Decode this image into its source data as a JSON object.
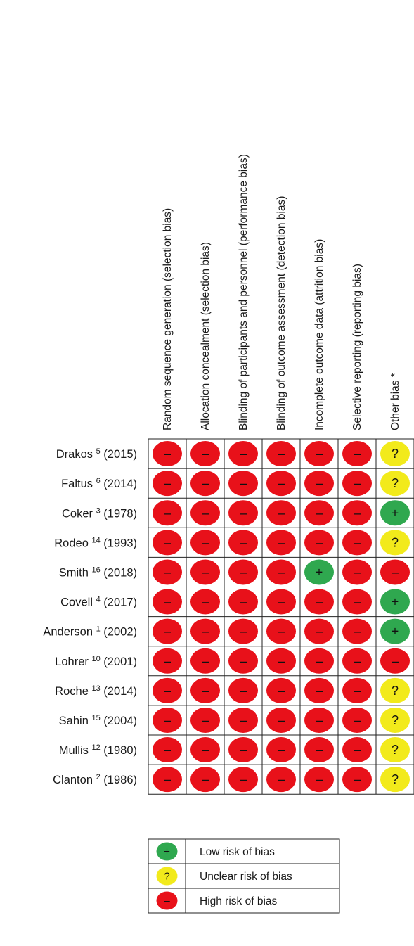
{
  "chart_data": {
    "type": "table",
    "domains": [
      "Random sequence generation (selection bias)",
      "Allocation concealment (selection bias)",
      "Blinding of participants and personnel (performance bias)",
      "Blinding of outcome assessment (detection bias)",
      "Incomplete outcome data (attrition bias)",
      "Selective reporting (reporting bias)",
      "Other bias *"
    ],
    "studies": [
      {
        "name": "Drakos",
        "ref": "5",
        "year": "(2015)",
        "ratings": [
          "high",
          "high",
          "high",
          "high",
          "high",
          "high",
          "unclear"
        ]
      },
      {
        "name": "Faltus",
        "ref": "6",
        "year": "(2014)",
        "ratings": [
          "high",
          "high",
          "high",
          "high",
          "high",
          "high",
          "unclear"
        ]
      },
      {
        "name": "Coker",
        "ref": "3",
        "year": "(1978)",
        "ratings": [
          "high",
          "high",
          "high",
          "high",
          "high",
          "high",
          "low"
        ]
      },
      {
        "name": "Rodeo",
        "ref": "14",
        "year": "(1993)",
        "ratings": [
          "high",
          "high",
          "high",
          "high",
          "high",
          "high",
          "unclear"
        ]
      },
      {
        "name": "Smith",
        "ref": "16",
        "year": "(2018)",
        "ratings": [
          "high",
          "high",
          "high",
          "high",
          "low",
          "high",
          "high"
        ]
      },
      {
        "name": "Covell",
        "ref": "4",
        "year": "(2017)",
        "ratings": [
          "high",
          "high",
          "high",
          "high",
          "high",
          "high",
          "low"
        ]
      },
      {
        "name": "Anderson",
        "ref": "1",
        "year": "(2002)",
        "ratings": [
          "high",
          "high",
          "high",
          "high",
          "high",
          "high",
          "low"
        ]
      },
      {
        "name": "Lohrer",
        "ref": "10",
        "year": "(2001)",
        "ratings": [
          "high",
          "high",
          "high",
          "high",
          "high",
          "high",
          "high"
        ]
      },
      {
        "name": "Roche",
        "ref": "13",
        "year": "(2014)",
        "ratings": [
          "high",
          "high",
          "high",
          "high",
          "high",
          "high",
          "unclear"
        ]
      },
      {
        "name": "Sahin",
        "ref": "15",
        "year": "(2004)",
        "ratings": [
          "high",
          "high",
          "high",
          "high",
          "high",
          "high",
          "unclear"
        ]
      },
      {
        "name": "Mullis",
        "ref": "12",
        "year": "(1980)",
        "ratings": [
          "high",
          "high",
          "high",
          "high",
          "high",
          "high",
          "unclear"
        ]
      },
      {
        "name": "Clanton",
        "ref": "2",
        "year": "(1986)",
        "ratings": [
          "high",
          "high",
          "high",
          "high",
          "high",
          "high",
          "unclear"
        ]
      }
    ],
    "legend": [
      {
        "key": "low",
        "label": "Low risk of bias"
      },
      {
        "key": "unclear",
        "label": "Unclear risk of bias"
      },
      {
        "key": "high",
        "label": "High risk of bias"
      }
    ],
    "symbols": {
      "low": "+",
      "unclear": "?",
      "high": "–"
    },
    "colors": {
      "low": "#2fa84f",
      "unclear": "#f2ea1b",
      "high": "#e8111a"
    }
  }
}
